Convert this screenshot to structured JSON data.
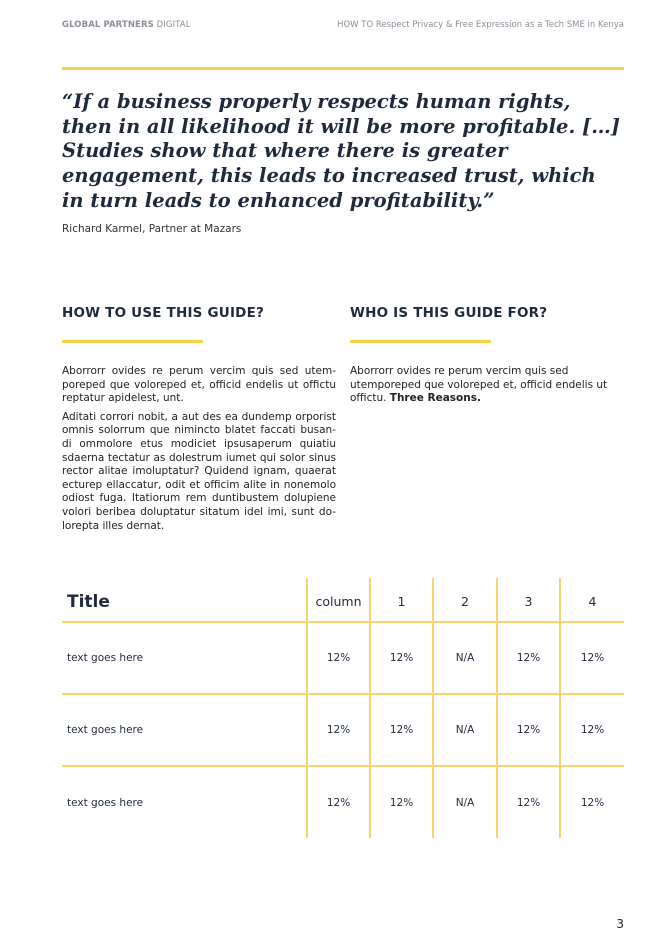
{
  "header": {
    "brand_bold": "GLOBAL PARTNERS",
    "brand_light": " DIGITAL",
    "doc_title": "HOW TO Respect Privacy & Free Expression as a Tech SME in Kenya"
  },
  "quote": {
    "text": "“If a business properly respects human rights, then in all likelihood it will be more profitable. […] Studies show that where there is greater engagement, this leads to increased trust, which in turn leads to enhanced profitability.”",
    "attribution": "Richard Karmel, Partner at Mazars"
  },
  "sections": [
    {
      "heading": "HOW TO USE THIS GUIDE?",
      "paragraphs": [
        "Aborrorr ovides re perum vercim quis sed utem-poreped que voloreped et, officid endelis ut offictu reptatur apidelest, unt.",
        "Aditati corrori nobit, a aut des ea dundemp orporist omnis solorrum que nimincto blatet faccati busan-di ommolore etus modiciet ipsusaperum quiatiu sdaerna tectatur as dolestrum iumet qui solor sinus rector alitae imoluptatur? Quidend ignam, quaerat ecturep ellaccatur, odit et officim alite in nonemolo odiost fuga. Itatiorum rem duntibustem dolupiene volori beribea doluptatur sitatum idel imi, sunt do-lorepta illes dernat."
      ]
    },
    {
      "heading": "WHO IS THIS GUIDE FOR?",
      "text": "Aborrorr ovides re perum vercim quis sed utemporeped que voloreped et, officid endelis ut offictu. ",
      "bold": "Three Reasons."
    }
  ],
  "table": {
    "headers": [
      "Title",
      "column",
      "1",
      "2",
      "3",
      "4"
    ],
    "rows": [
      [
        "text goes here",
        "12%",
        "12%",
        "N/A",
        "12%",
        "12%"
      ],
      [
        "text goes here",
        "12%",
        "12%",
        "N/A",
        "12%",
        "12%"
      ],
      [
        "text goes here",
        "12%",
        "12%",
        "N/A",
        "12%",
        "12%"
      ]
    ]
  },
  "page_number": "3",
  "colors": {
    "accent": "#f7d04a",
    "text": "#1f2a3c",
    "muted": "#8a8f98"
  }
}
